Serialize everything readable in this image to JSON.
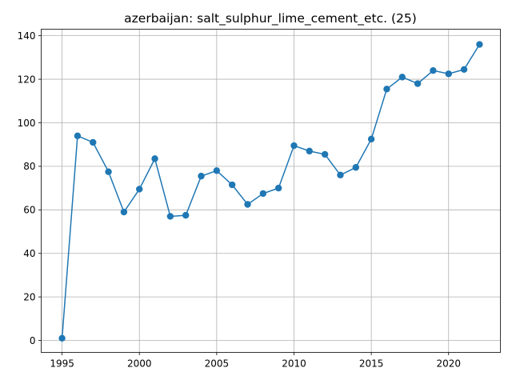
{
  "chart_data": {
    "type": "line",
    "title": "azerbaijan: salt_sulphur_lime_cement_etc. (25)",
    "xlabel": "",
    "ylabel": "",
    "xlim": [
      1993.65,
      2023.35
    ],
    "ylim": [
      -5.5,
      143
    ],
    "xticks": [
      1995,
      2000,
      2005,
      2010,
      2015,
      2020
    ],
    "yticks": [
      0,
      20,
      40,
      60,
      80,
      100,
      120,
      140
    ],
    "grid": true,
    "marker": "circle",
    "color": "#1f77b4",
    "series": [
      {
        "x": [
          1995,
          1996,
          1997,
          1998,
          1999,
          2000,
          2001,
          2002,
          2003,
          2004,
          2005,
          2006,
          2007,
          2008,
          2009,
          2010,
          2011,
          2012,
          2013,
          2014,
          2015,
          2016,
          2017,
          2018,
          2019,
          2020,
          2021,
          2022
        ],
        "y": [
          1,
          94,
          91,
          77.5,
          59,
          69.5,
          83.5,
          57,
          57.5,
          75.5,
          78,
          71.5,
          62.5,
          67.5,
          70,
          89.5,
          87,
          85.5,
          76,
          79.5,
          92.5,
          115.5,
          121,
          118,
          124,
          122.5,
          124.5,
          136
        ]
      }
    ]
  }
}
